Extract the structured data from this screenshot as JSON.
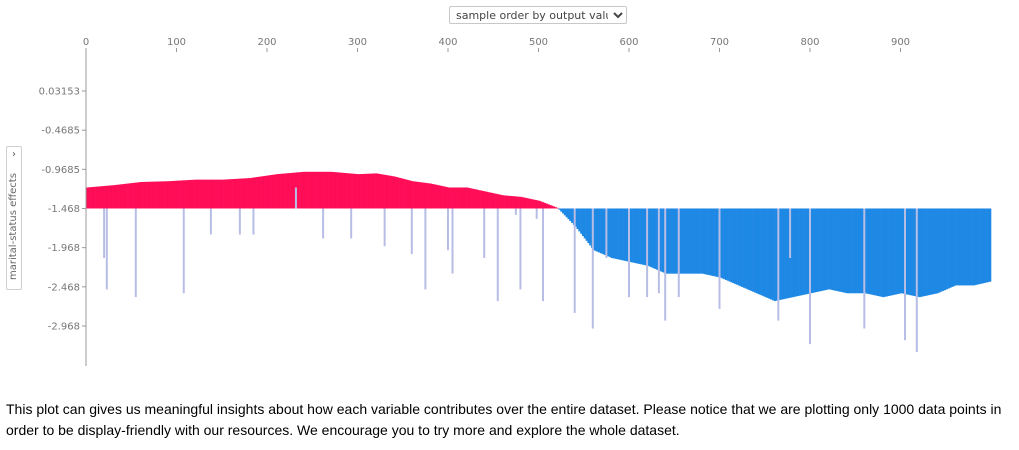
{
  "controls": {
    "order_select": {
      "selected": "sample order by output value",
      "options": [
        "sample order by output value"
      ]
    }
  },
  "ylabel_tab": {
    "chevron": "›",
    "label": "marital-status effects"
  },
  "caption": "This plot can gives us meaningful insights about how each variable contributes over the entire dataset. Please notice that we are plotting only 1000 data points in order to be display-friendly with our resources. We encourage you to try more and explore the whole dataset.",
  "colors": {
    "positive": "#ff0d57",
    "negative": "#1e88e5",
    "spikes": "#b8bde6",
    "axis": "#999999",
    "tick_text": "#777777"
  },
  "chart_data": {
    "type": "area",
    "title": "",
    "xlabel": "",
    "ylabel": "marital-status effects",
    "xlim": [
      0,
      1000
    ],
    "ylim": [
      -3.3,
      0.3
    ],
    "baseline": -1.468,
    "x_ticks": [
      0,
      100,
      200,
      300,
      400,
      500,
      600,
      700,
      800,
      900
    ],
    "x_tick_labels": [
      "0",
      "100",
      "200",
      "300",
      "400",
      "500",
      "600",
      "700",
      "800",
      "900"
    ],
    "y_ticks": [
      0.03153,
      -0.4685,
      -0.9685,
      -1.468,
      -1.968,
      -2.468,
      -2.968
    ],
    "y_tick_labels": [
      "0.03153",
      "-0.4685",
      "-0.9685",
      "-1.468",
      "-1.968",
      "-2.468",
      "-2.968"
    ],
    "grid": false,
    "legend": "none",
    "series": [
      {
        "name": "",
        "color_rule": "red where above baseline, blue where below",
        "x": [
          0,
          30,
          60,
          90,
          120,
          150,
          180,
          210,
          240,
          270,
          300,
          320,
          340,
          360,
          380,
          400,
          420,
          440,
          460,
          480,
          500,
          520,
          540,
          560,
          580,
          600,
          620,
          640,
          660,
          680,
          700,
          720,
          740,
          760,
          780,
          800,
          820,
          840,
          860,
          880,
          900,
          920,
          940,
          960,
          980,
          999
        ],
        "values": [
          -1.2,
          -1.17,
          -1.13,
          -1.12,
          -1.1,
          -1.1,
          -1.08,
          -1.03,
          -1.0,
          -1.0,
          -1.03,
          -1.02,
          -1.06,
          -1.12,
          -1.15,
          -1.2,
          -1.2,
          -1.25,
          -1.3,
          -1.32,
          -1.37,
          -1.46,
          -1.7,
          -2.0,
          -2.1,
          -2.15,
          -2.2,
          -2.3,
          -2.3,
          -2.3,
          -2.35,
          -2.45,
          -2.55,
          -2.65,
          -2.6,
          -2.55,
          -2.5,
          -2.55,
          -2.55,
          -2.6,
          -2.55,
          -2.6,
          -2.55,
          -2.45,
          -2.45,
          -2.4
        ]
      }
    ],
    "spike_series": {
      "name": "",
      "x": [
        20,
        23,
        55,
        108,
        138,
        170,
        185,
        232,
        262,
        293,
        330,
        360,
        375,
        400,
        405,
        440,
        455,
        475,
        480,
        498,
        505,
        540,
        560,
        575,
        600,
        620,
        633,
        640,
        655,
        700,
        765,
        778,
        800,
        860,
        905,
        918
      ],
      "values": [
        -2.1,
        -2.5,
        -2.6,
        -2.55,
        -1.8,
        -1.8,
        -1.8,
        -1.2,
        -1.85,
        -1.85,
        -1.95,
        -2.05,
        -2.5,
        -2.0,
        -2.3,
        -2.1,
        -2.65,
        -1.55,
        -2.5,
        -1.6,
        -2.65,
        -2.8,
        -3.0,
        -2.1,
        -2.6,
        -2.6,
        -2.55,
        -2.9,
        -2.6,
        -2.75,
        -2.9,
        -2.1,
        -3.2,
        -3.0,
        -3.15,
        -3.3
      ]
    }
  }
}
